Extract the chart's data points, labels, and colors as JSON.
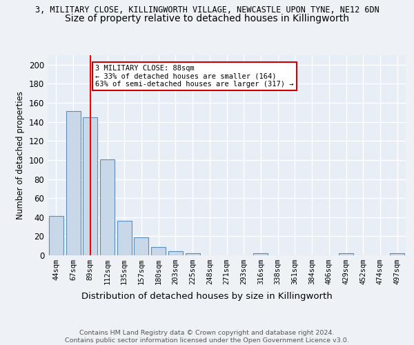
{
  "title_line1": "3, MILITARY CLOSE, KILLINGWORTH VILLAGE, NEWCASTLE UPON TYNE, NE12 6DN",
  "title_line2": "Size of property relative to detached houses in Killingworth",
  "xlabel": "Distribution of detached houses by size in Killingworth",
  "ylabel": "Number of detached properties",
  "categories": [
    "44sqm",
    "67sqm",
    "89sqm",
    "112sqm",
    "135sqm",
    "157sqm",
    "180sqm",
    "203sqm",
    "225sqm",
    "248sqm",
    "271sqm",
    "293sqm",
    "316sqm",
    "338sqm",
    "361sqm",
    "384sqm",
    "406sqm",
    "429sqm",
    "452sqm",
    "474sqm",
    "497sqm"
  ],
  "values": [
    41,
    151,
    145,
    101,
    36,
    19,
    9,
    4,
    2,
    0,
    0,
    0,
    2,
    0,
    0,
    0,
    0,
    2,
    0,
    0,
    2
  ],
  "bar_color": "#c8d8e8",
  "bar_edge_color": "#5b8db8",
  "red_line_x": 2,
  "annotation_text": "3 MILITARY CLOSE: 88sqm\n← 33% of detached houses are smaller (164)\n63% of semi-detached houses are larger (317) →",
  "annotation_box_color": "#ffffff",
  "annotation_border_color": "#cc0000",
  "ylim": [
    0,
    210
  ],
  "yticks": [
    0,
    20,
    40,
    60,
    80,
    100,
    120,
    140,
    160,
    180,
    200
  ],
  "footer_text": "Contains HM Land Registry data © Crown copyright and database right 2024.\nContains public sector information licensed under the Open Government Licence v3.0.",
  "bg_color": "#eef2f7",
  "plot_bg_color": "#e8eef5",
  "grid_color": "#ffffff",
  "title_fontsize": 8.5,
  "subtitle_fontsize": 10,
  "bar_width": 0.85
}
